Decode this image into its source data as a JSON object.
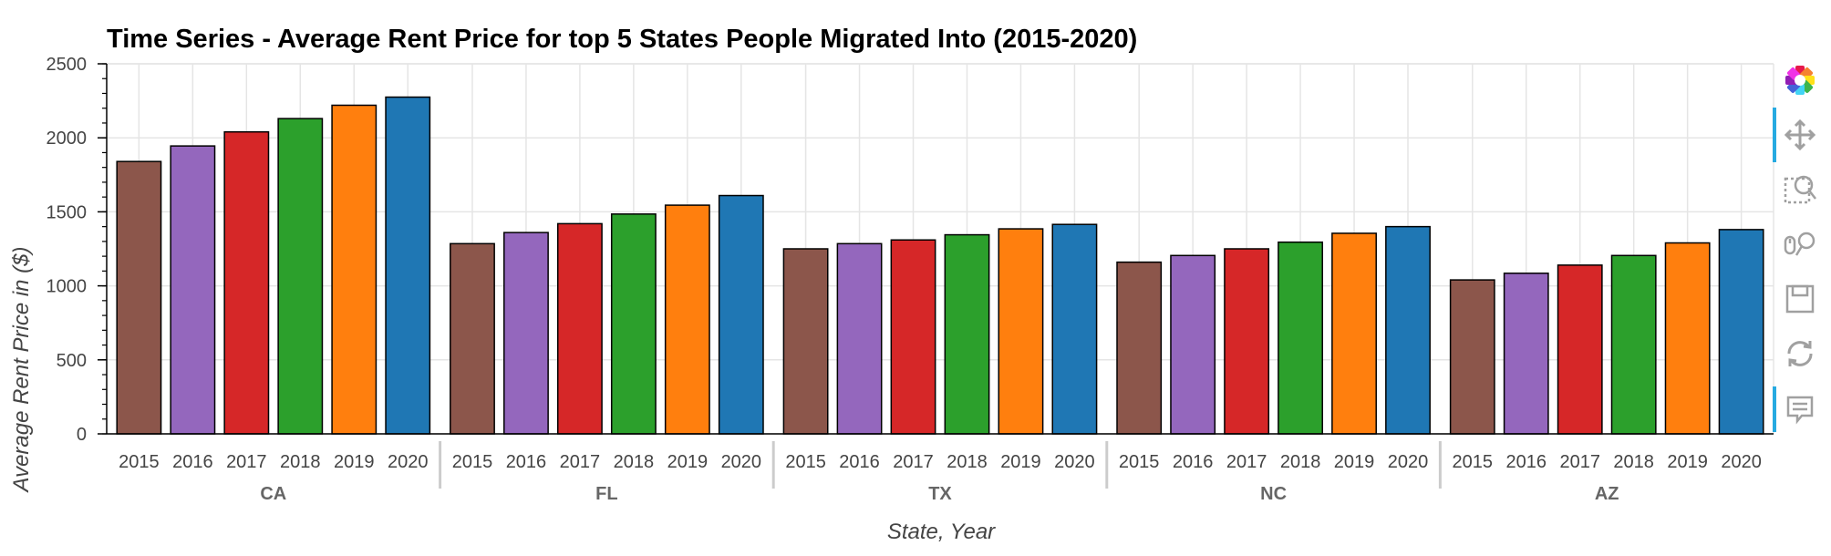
{
  "chart_data": {
    "type": "bar",
    "title": "Time Series - Average Rent Price for top 5 States People Migrated Into (2015-2020)",
    "xlabel": "State, Year",
    "ylabel": "Average Rent Price in ($)",
    "ylim": [
      0,
      2500
    ],
    "yticks": [
      "0",
      "500",
      "1000",
      "1500",
      "2000",
      "2500"
    ],
    "grid": true,
    "groups": [
      "CA",
      "FL",
      "TX",
      "NC",
      "AZ"
    ],
    "years": [
      "2015",
      "2016",
      "2017",
      "2018",
      "2019",
      "2020"
    ],
    "year_colors": [
      "#8c564b",
      "#9467bd",
      "#d62728",
      "#2ca02c",
      "#ff7f0e",
      "#1f77b4"
    ],
    "values": {
      "CA": [
        1840,
        1945,
        2040,
        2130,
        2220,
        2275
      ],
      "FL": [
        1285,
        1360,
        1420,
        1485,
        1545,
        1610
      ],
      "TX": [
        1250,
        1285,
        1310,
        1345,
        1385,
        1415
      ],
      "NC": [
        1160,
        1205,
        1250,
        1295,
        1355,
        1400
      ],
      "AZ": [
        1040,
        1085,
        1140,
        1205,
        1290,
        1380
      ]
    }
  },
  "toolbar": {
    "tools": [
      {
        "name": "bokeh-logo-icon",
        "interactable": true
      },
      {
        "name": "pan-icon",
        "interactable": true,
        "active": true
      },
      {
        "name": "box-zoom-icon",
        "interactable": true
      },
      {
        "name": "wheel-zoom-icon",
        "interactable": true
      },
      {
        "name": "save-icon",
        "interactable": true
      },
      {
        "name": "reset-icon",
        "interactable": true
      },
      {
        "name": "hover-icon",
        "interactable": true,
        "active": true
      }
    ],
    "accent_color": "#26aae1",
    "icon_color": "#a0a0a0"
  }
}
